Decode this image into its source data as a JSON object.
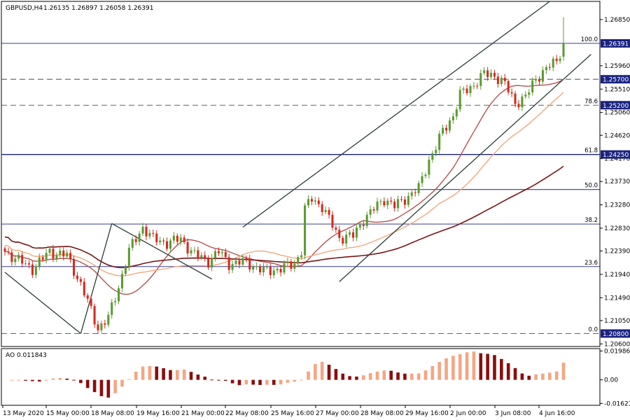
{
  "chart_data": {
    "type": "candlestick",
    "instrument": "GBPUSD,H4",
    "ohlc_header": "1.26135 1.26897 1.26058 1.26391",
    "price_axis": {
      "range": [
        1.2055,
        1.272
      ],
      "ticks": [
        "1.26850",
        "1.25960",
        "1.25510",
        "1.25060",
        "1.24620",
        "1.24170",
        "1.23730",
        "1.23280",
        "1.22830",
        "1.22390",
        "1.21940",
        "1.21490",
        "1.21050",
        "1.20600"
      ]
    },
    "price_tags": [
      {
        "value": 1.26391,
        "label": "1.26391"
      },
      {
        "value": 1.257,
        "label": "1.25700"
      },
      {
        "value": 1.252,
        "label": "1.25200"
      },
      {
        "value": 1.2425,
        "label": "1.24250"
      },
      {
        "value": 1.208,
        "label": "1.20800"
      }
    ],
    "fib_levels": [
      {
        "label": "100.0",
        "value": 1.26391
      },
      {
        "label": "78.6",
        "value": 1.252
      },
      {
        "label": "61.8",
        "value": 1.2425
      },
      {
        "label": "50.0",
        "value": 1.23575
      },
      {
        "label": "38.2",
        "value": 1.2291
      },
      {
        "label": "23.6",
        "value": 1.2209
      },
      {
        "label": "0.0",
        "value": 1.208
      }
    ],
    "time_axis": [
      "13 May 2020",
      "15 May 00:00",
      "18 May 08:00",
      "19 May 16:00",
      "21 May 00:00",
      "22 May 08:00",
      "25 May 16:00",
      "27 May 00:00",
      "28 May 08:00",
      "29 May 16:00",
      "2 Jun 00:00",
      "3 Jun 08:00",
      "4 Jun 16:00"
    ],
    "indicator": {
      "name": "AO 0.011843",
      "axis_ticks": [
        "0.01986",
        "0.00",
        "-0.016234"
      ],
      "range": [
        -0.0175,
        0.0215
      ]
    },
    "colors": {
      "bull": "#5b9b32",
      "bear": "#d62a1f",
      "ma_fast": "#b4524e",
      "ma_mid": "#f4a87c",
      "ma_slow": "#7b1416",
      "ao_up": "#f4a683",
      "ao_down": "#8b0d0d",
      "level": "#1a237e",
      "trend": "#2b3e35"
    }
  }
}
